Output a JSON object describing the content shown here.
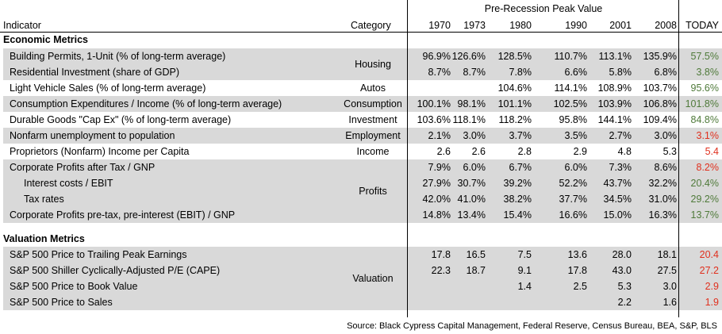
{
  "header": {
    "group_label": "Pre-Recession Peak Value",
    "indicator": "Indicator",
    "category": "Category",
    "years": [
      "1970",
      "1973",
      "1980",
      "1990",
      "2001",
      "2008",
      "TODAY"
    ]
  },
  "sections": {
    "economic": "Economic Metrics",
    "valuation": "Valuation Metrics"
  },
  "categories": {
    "housing": "Housing",
    "autos": "Autos",
    "consumption": "Consumption",
    "investment": "Investment",
    "employment": "Employment",
    "income": "Income",
    "profits": "Profits",
    "valuation": "Valuation"
  },
  "rows": [
    {
      "name": "Building Permits, 1-Unit (% of long-term average)",
      "values": [
        "96.9%",
        "126.6%",
        "128.5%",
        "110.7%",
        "113.1%",
        "135.9%"
      ],
      "today": "57.5%",
      "today_color": "#4f7a3a"
    },
    {
      "name": "Residential Investment (share of GDP)",
      "values": [
        "8.7%",
        "8.7%",
        "7.8%",
        "6.6%",
        "5.8%",
        "6.8%"
      ],
      "today": "3.8%",
      "today_color": "#4f7a3a"
    },
    {
      "name": "Light Vehicle Sales  (% of long-term average)",
      "values": [
        "",
        "",
        "104.6%",
        "114.1%",
        "108.9%",
        "103.7%"
      ],
      "today": "95.6%",
      "today_color": "#4f7a3a"
    },
    {
      "name": "Consumption Expenditures / Income  (% of long-term average)",
      "values": [
        "100.1%",
        "98.1%",
        "101.1%",
        "102.5%",
        "103.9%",
        "106.8%"
      ],
      "today": "101.8%",
      "today_color": "#4f7a3a"
    },
    {
      "name": "Durable Goods \"Cap Ex\"  (% of long-term average)",
      "values": [
        "103.6%",
        "118.1%",
        "118.2%",
        "95.8%",
        "144.1%",
        "109.4%"
      ],
      "today": "84.8%",
      "today_color": "#4f7a3a"
    },
    {
      "name": "Nonfarm unemployment to population",
      "values": [
        "2.1%",
        "3.0%",
        "3.7%",
        "3.5%",
        "2.7%",
        "3.0%"
      ],
      "today": "3.1%",
      "today_color": "#e0301e"
    },
    {
      "name": "Proprietors (Nonfarm) Income per Capita",
      "values": [
        "2.6",
        "2.6",
        "2.8",
        "2.9",
        "4.8",
        "5.3"
      ],
      "today": "5.4",
      "today_color": "#e0301e"
    },
    {
      "name": "Corporate Profits after Tax / GNP",
      "values": [
        "7.9%",
        "6.0%",
        "6.7%",
        "6.0%",
        "7.3%",
        "8.6%"
      ],
      "today": "8.2%",
      "today_color": "#e0301e"
    },
    {
      "name": "Interest costs / EBIT",
      "values": [
        "27.9%",
        "30.7%",
        "39.2%",
        "52.2%",
        "43.7%",
        "32.2%"
      ],
      "today": "20.4%",
      "today_color": "#4f7a3a"
    },
    {
      "name": "Tax rates",
      "values": [
        "42.0%",
        "41.0%",
        "38.2%",
        "37.7%",
        "34.5%",
        "31.0%"
      ],
      "today": "29.2%",
      "today_color": "#4f7a3a"
    },
    {
      "name": "Corporate Profits pre-tax, pre-interest (EBIT) / GNP",
      "values": [
        "14.8%",
        "13.4%",
        "15.4%",
        "16.6%",
        "15.0%",
        "16.3%"
      ],
      "today": "13.7%",
      "today_color": "#4f7a3a"
    }
  ],
  "valuation_rows": [
    {
      "name": "S&P 500 Price to Trailing Peak Earnings",
      "values": [
        "17.8",
        "16.5",
        "7.5",
        "13.6",
        "28.0",
        "18.1"
      ],
      "today": "20.4",
      "today_color": "#e0301e"
    },
    {
      "name": "S&P 500 Shiller Cyclically-Adjusted P/E (CAPE)",
      "values": [
        "22.3",
        "18.7",
        "9.1",
        "17.8",
        "43.0",
        "27.5"
      ],
      "today": "27.2",
      "today_color": "#e0301e"
    },
    {
      "name": "S&P 500 Price to Book Value",
      "values": [
        "",
        "",
        "1.4",
        "2.5",
        "5.3",
        "3.0"
      ],
      "today": "2.9",
      "today_color": "#e0301e"
    },
    {
      "name": "S&P 500 Price to Sales",
      "values": [
        "",
        "",
        "",
        "",
        "2.2",
        "1.6"
      ],
      "today": "1.9",
      "today_color": "#e0301e"
    }
  ],
  "source": "Source: Black Cypress Capital Management, Federal Reserve, Census Bureau, BEA, S&P, BLS"
}
